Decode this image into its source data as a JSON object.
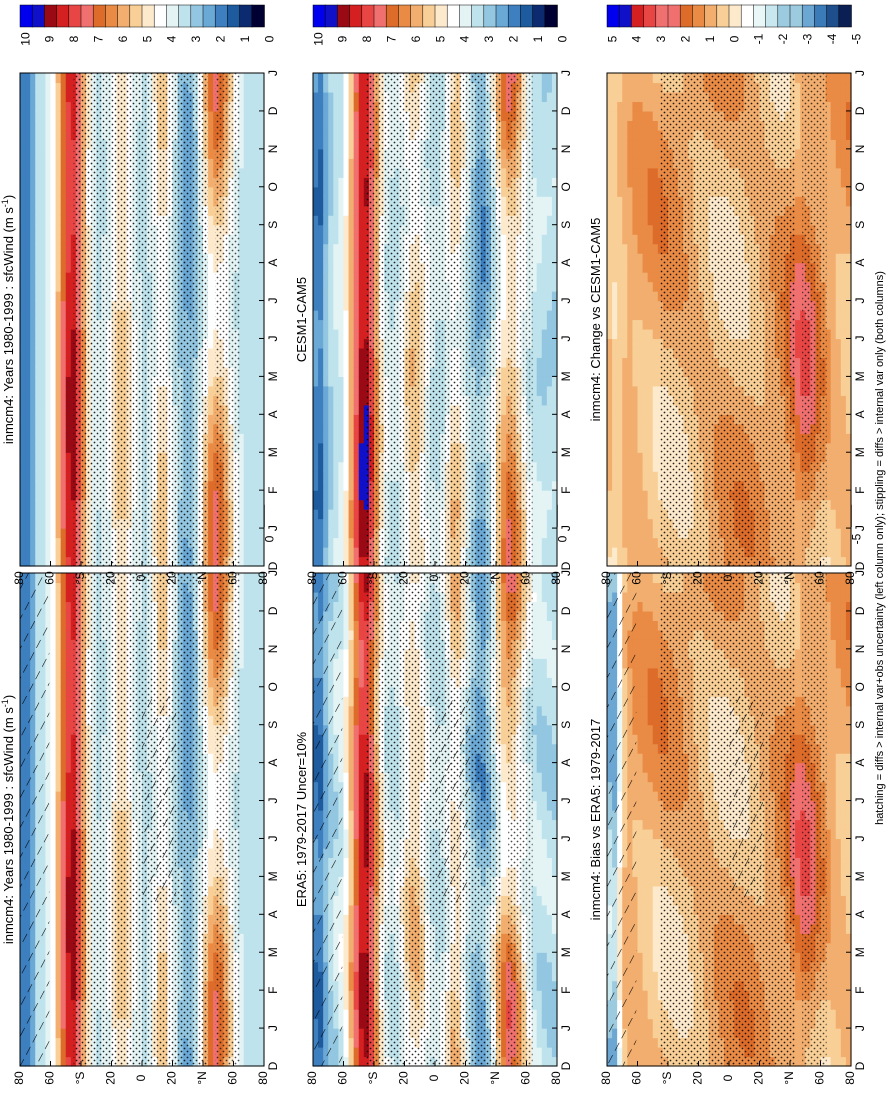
{
  "figure": {
    "footnote": "hatching = diffs > internal var+obs uncertainty (left column only); stippling = diffs > internal var only (both columns)"
  },
  "colors": {
    "abs_palette": [
      "#000033",
      "#0b2a6f",
      "#1e5a9e",
      "#3d7fbf",
      "#6aa8d6",
      "#93c6e0",
      "#bfe3ec",
      "#e4f4f5",
      "#ffffff",
      "#fde9cc",
      "#f8cf96",
      "#f2ae6e",
      "#e98b45",
      "#dd6c2a",
      "#f07070",
      "#e84545",
      "#d42020",
      "#9a0a14",
      "#1010c8",
      "#0000ee",
      "#0000ff"
    ],
    "diff_palette": [
      "#0b1f55",
      "#1e4f8c",
      "#3b7cb8",
      "#6ca6d2",
      "#9ccbe0",
      "#c9e7ee",
      "#eaf7f7",
      "#ffffff",
      "#fde9cc",
      "#f8cf96",
      "#f2ae6e",
      "#e98b45",
      "#dd6c2a",
      "#f07070",
      "#e84545",
      "#d42020",
      "#1010c8",
      "#0000ee",
      "#0000ff"
    ]
  },
  "chart_data": [
    {
      "type": "heatmap",
      "panel": "top-left",
      "title": "inmcm4: Years 1980-1999 : sfcWind (m s-1)",
      "title_text": "inmcm4: Years 1980-1999 : sfcWind (m s",
      "title_sup": "-1",
      "title_close": ")",
      "x": [
        "D",
        "J",
        "F",
        "M",
        "A",
        "M",
        "J",
        "J",
        "A",
        "S",
        "O",
        "N",
        "D",
        "J"
      ],
      "y": [
        "80",
        "60",
        "°N",
        "20",
        "0",
        "20",
        "°S",
        "60",
        "80"
      ],
      "ylim": [
        -90,
        90
      ],
      "xlim": [
        0,
        13
      ],
      "colorbar_ticks": [
        "10",
        "9",
        "8",
        "7",
        "6",
        "5",
        "4",
        "3",
        "2",
        "1",
        "0"
      ],
      "scale": "abs",
      "hatching": true,
      "stippling": true
    },
    {
      "type": "heatmap",
      "panel": "middle-left",
      "title": "ERA5: 1979-2017 Uncer=10%",
      "x": [
        "D",
        "J",
        "F",
        "M",
        "A",
        "M",
        "J",
        "J",
        "A",
        "S",
        "O",
        "N",
        "D",
        "J"
      ],
      "y": [
        "80",
        "60",
        "°N",
        "20",
        "0",
        "20",
        "°S",
        "60",
        "80"
      ],
      "ylim": [
        -90,
        90
      ],
      "xlim": [
        0,
        13
      ],
      "colorbar_ticks": [
        "10",
        "9",
        "8",
        "7",
        "6",
        "5",
        "4",
        "3",
        "2",
        "1",
        "0"
      ],
      "scale": "abs",
      "hatching": true,
      "stippling": true
    },
    {
      "type": "heatmap",
      "panel": "bottom-left",
      "title": "inmcm4: Bias vs ERA5: 1979-2017",
      "x": [
        "D",
        "J",
        "F",
        "M",
        "A",
        "M",
        "J",
        "J",
        "A",
        "S",
        "O",
        "N",
        "D",
        "J"
      ],
      "y": [
        "80",
        "60",
        "°N",
        "20",
        "0",
        "20",
        "°S",
        "60",
        "80"
      ],
      "ylim": [
        -90,
        90
      ],
      "xlim": [
        0,
        13
      ],
      "colorbar_ticks": [
        "5",
        "4",
        "3",
        "2",
        "1",
        "0",
        "-1",
        "-2",
        "-3",
        "-4",
        "-5"
      ],
      "scale": "diff",
      "hatching": true,
      "stippling": true
    },
    {
      "type": "heatmap",
      "panel": "top-right",
      "title": "inmcm4: Years 1980-1999 : sfcWind (m s-1)",
      "title_text": "inmcm4: Years 1980-1999 : sfcWind (m s",
      "title_sup": "-1",
      "title_close": ")",
      "x": [
        "D",
        "J",
        "F",
        "M",
        "A",
        "M",
        "J",
        "J",
        "A",
        "S",
        "O",
        "N",
        "D",
        "J"
      ],
      "y": [
        "80",
        "60",
        "°N",
        "20",
        "0",
        "20",
        "°S",
        "60",
        "80"
      ],
      "ylim": [
        -90,
        90
      ],
      "xlim": [
        0,
        13
      ],
      "colorbar_ticks": [
        "10",
        "9",
        "8",
        "7",
        "6",
        "5",
        "4",
        "3",
        "2",
        "1",
        "0"
      ],
      "scale": "abs",
      "hatching": false,
      "stippling": true
    },
    {
      "type": "heatmap",
      "panel": "middle-right",
      "title": "CESM1-CAM5",
      "x": [
        "D",
        "J",
        "F",
        "M",
        "A",
        "M",
        "J",
        "J",
        "A",
        "S",
        "O",
        "N",
        "D",
        "J"
      ],
      "y": [
        "80",
        "60",
        "°N",
        "20",
        "0",
        "20",
        "°S",
        "60",
        "80"
      ],
      "ylim": [
        -90,
        90
      ],
      "xlim": [
        0,
        13
      ],
      "colorbar_ticks": [
        "10",
        "9",
        "8",
        "7",
        "6",
        "5",
        "4",
        "3",
        "2",
        "1",
        "0"
      ],
      "scale": "abs",
      "hatching": false,
      "stippling": true
    },
    {
      "type": "heatmap",
      "panel": "bottom-right",
      "title": "inmcm4: Change vs CESM1-CAM5",
      "x": [
        "D",
        "J",
        "F",
        "M",
        "A",
        "M",
        "J",
        "J",
        "A",
        "S",
        "O",
        "N",
        "D",
        "J"
      ],
      "y": [
        "80",
        "60",
        "°N",
        "20",
        "0",
        "20",
        "°S",
        "60",
        "80"
      ],
      "ylim": [
        -90,
        90
      ],
      "xlim": [
        0,
        13
      ],
      "colorbar_ticks": [
        "5",
        "4",
        "3",
        "2",
        "1",
        "0",
        "-1",
        "-2",
        "-3",
        "-4",
        "-5"
      ],
      "scale": "diff",
      "hatching": false,
      "stippling": true
    }
  ]
}
